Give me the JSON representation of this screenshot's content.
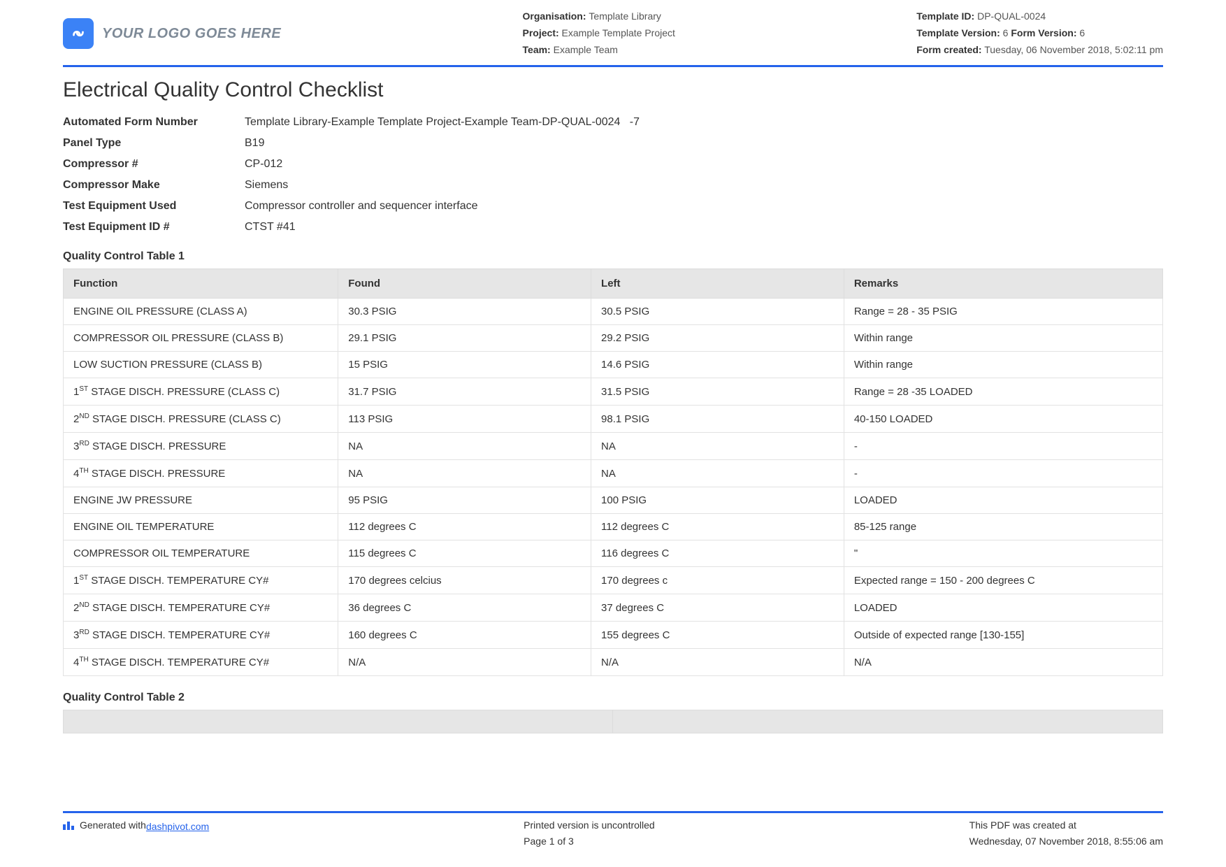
{
  "header": {
    "logo_text": "YOUR LOGO GOES HERE",
    "meta_left": {
      "organisation_label": "Organisation:",
      "organisation_value": "Template Library",
      "project_label": "Project:",
      "project_value": "Example Template Project",
      "team_label": "Team:",
      "team_value": "Example Team"
    },
    "meta_right": {
      "template_id_label": "Template ID:",
      "template_id_value": "DP-QUAL-0024",
      "template_version_label": "Template Version:",
      "template_version_value": "6",
      "form_version_label": "Form Version:",
      "form_version_value": "6",
      "form_created_label": "Form created:",
      "form_created_value": "Tuesday, 06 November 2018, 5:02:11 pm"
    }
  },
  "title": "Electrical Quality Control Checklist",
  "info": {
    "rows": [
      {
        "label": "Automated Form Number",
        "value": "Template Library-Example Template Project-Example Team-DP-QUAL-0024   -7"
      },
      {
        "label": "Panel Type",
        "value": "B19"
      },
      {
        "label": "Compressor #",
        "value": "CP-012"
      },
      {
        "label": "Compressor Make",
        "value": "Siemens"
      },
      {
        "label": "Test Equipment Used",
        "value": "Compressor controller and sequencer interface"
      },
      {
        "label": "Test Equipment ID #",
        "value": "CTST #41"
      }
    ]
  },
  "table1": {
    "heading": "Quality Control Table 1",
    "columns": [
      "Function",
      "Found",
      "Left",
      "Remarks"
    ],
    "rows": [
      {
        "func": "ENGINE OIL PRESSURE (CLASS A)",
        "found": "30.3 PSIG",
        "left": "30.5 PSIG",
        "rem": "Range = 28 - 35 PSIG"
      },
      {
        "func": "COMPRESSOR OIL PRESSURE (CLASS B)",
        "found": "29.1 PSIG",
        "left": "29.2 PSIG",
        "rem": "Within range"
      },
      {
        "func": "LOW SUCTION PRESSURE (CLASS B)",
        "found": "15 PSIG",
        "left": "14.6 PSIG",
        "rem": "Within range"
      },
      {
        "func_html": "1<span class=\"sup\">ST</span> STAGE DISCH. PRESSURE (CLASS C)",
        "found": "31.7 PSIG",
        "left": "31.5 PSIG",
        "rem": "Range = 28 -35 LOADED"
      },
      {
        "func_html": "2<span class=\"sup\">ND</span> STAGE DISCH. PRESSURE (CLASS C)",
        "found": "113 PSIG",
        "left": "98.1 PSIG",
        "rem": "40-150 LOADED"
      },
      {
        "func_html": "3<span class=\"sup\">RD</span> STAGE DISCH. PRESSURE",
        "found": "NA",
        "left": "NA",
        "rem": "-"
      },
      {
        "func_html": "4<span class=\"sup\">TH</span> STAGE DISCH. PRESSURE",
        "found": "NA",
        "left": "NA",
        "rem": "-"
      },
      {
        "func": "ENGINE JW PRESSURE",
        "found": "95 PSIG",
        "left": "100 PSIG",
        "rem": "LOADED"
      },
      {
        "func": "ENGINE OIL TEMPERATURE",
        "found": "112 degrees C",
        "left": "112 degrees C",
        "rem": "85-125 range"
      },
      {
        "func": "COMPRESSOR OIL TEMPERATURE",
        "found": "115 degrees C",
        "left": "116 degrees C",
        "rem": "\""
      },
      {
        "func_html": "1<span class=\"sup\">ST</span> STAGE DISCH. TEMPERATURE CY#",
        "found": "170 degrees celcius",
        "left": "170 degrees c",
        "rem": "Expected range = 150 - 200 degrees C"
      },
      {
        "func_html": "2<span class=\"sup\">ND</span> STAGE DISCH. TEMPERATURE CY#",
        "found": "36 degrees C",
        "left": "37 degrees C",
        "rem": "LOADED"
      },
      {
        "func_html": "3<span class=\"sup\">RD</span> STAGE DISCH. TEMPERATURE CY#",
        "found": "160 degrees C",
        "left": "155 degrees C",
        "rem": "Outside of expected range [130-155]"
      },
      {
        "func_html": "4<span class=\"sup\">TH</span> STAGE DISCH. TEMPERATURE CY#",
        "found": "N/A",
        "left": "N/A",
        "rem": "N/A"
      }
    ]
  },
  "table2": {
    "heading": "Quality Control Table 2"
  },
  "footer": {
    "generated_prefix": "Generated with ",
    "generated_link": "dashpivot.com",
    "uncontrolled": "Printed version is uncontrolled",
    "page": "Page 1 of 3",
    "created_label": "This PDF was created at",
    "created_value": "Wednesday, 07 November 2018, 8:55:06 am"
  },
  "colors": {
    "accent": "#2563eb",
    "header_bg": "#e6e6e6",
    "border": "#dcdcdc",
    "text": "#333333"
  }
}
